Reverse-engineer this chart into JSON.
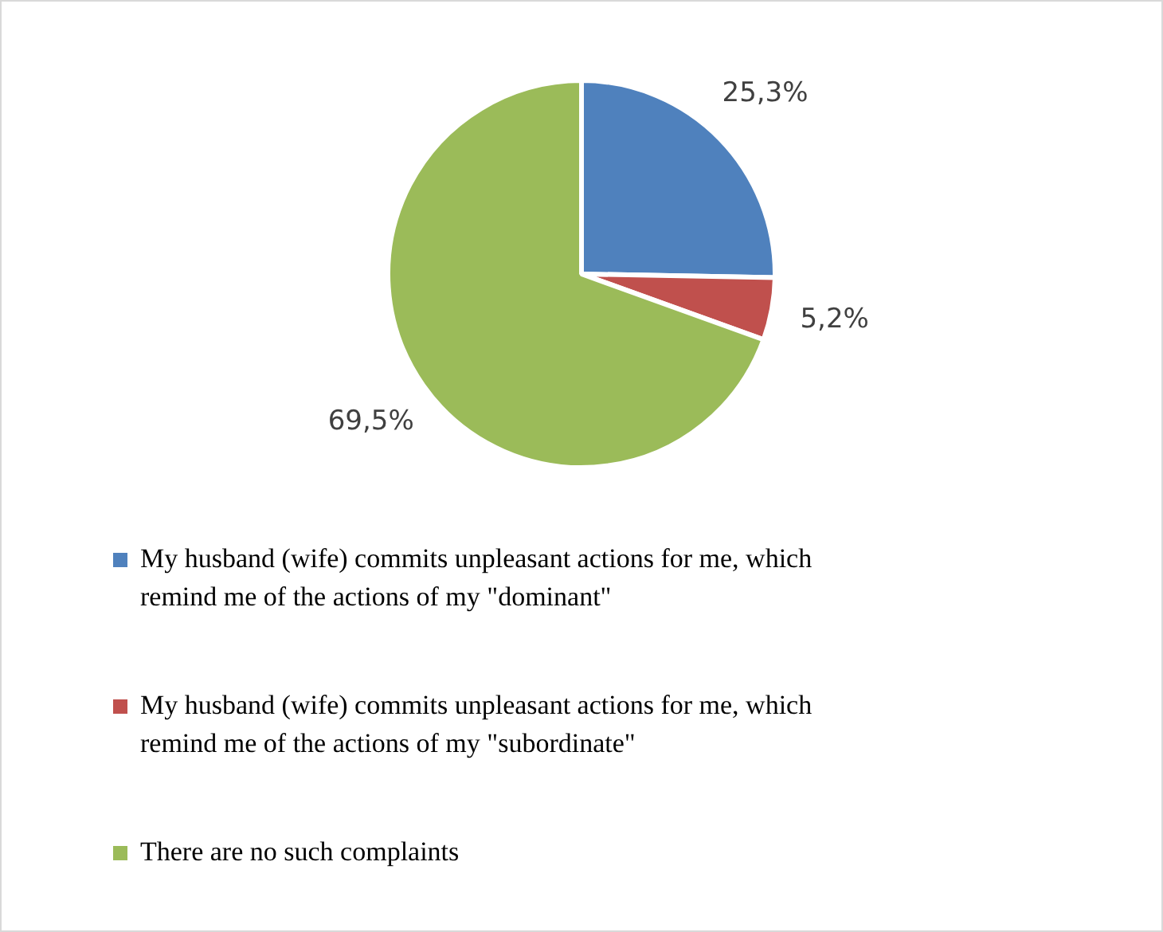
{
  "chart_data": {
    "type": "pie",
    "categories": [
      "My husband (wife) commits unpleasant actions for me, which remind me of the actions of my \"dominant\"",
      "My husband (wife) commits unpleasant actions for me, which remind me of the actions of my \"subordinate\"",
      "There are no such complaints"
    ],
    "values": [
      25.3,
      5.2,
      69.5
    ],
    "colors": [
      "#4f81bd",
      "#c0504d",
      "#9bbb59"
    ],
    "value_labels": [
      "25,3%",
      "5,2%",
      "69,5%"
    ],
    "legend": "bottom"
  }
}
